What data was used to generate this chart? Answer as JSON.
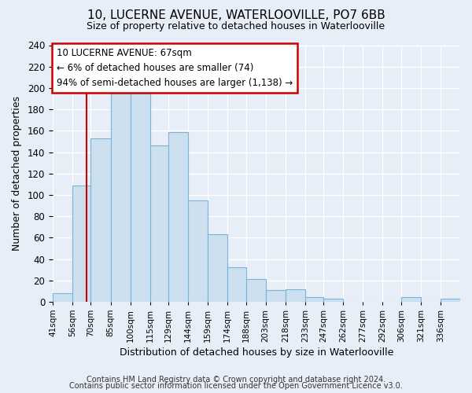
{
  "title": "10, LUCERNE AVENUE, WATERLOOVILLE, PO7 6BB",
  "subtitle": "Size of property relative to detached houses in Waterlooville",
  "xlabel": "Distribution of detached houses by size in Waterlooville",
  "ylabel": "Number of detached properties",
  "footer_line1": "Contains HM Land Registry data © Crown copyright and database right 2024.",
  "footer_line2": "Contains public sector information licensed under the Open Government Licence v3.0.",
  "bar_labels": [
    "41sqm",
    "56sqm",
    "70sqm",
    "85sqm",
    "100sqm",
    "115sqm",
    "129sqm",
    "144sqm",
    "159sqm",
    "174sqm",
    "188sqm",
    "203sqm",
    "218sqm",
    "233sqm",
    "247sqm",
    "262sqm",
    "277sqm",
    "292sqm",
    "306sqm",
    "321sqm",
    "336sqm"
  ],
  "bar_heights": [
    8,
    109,
    153,
    195,
    195,
    146,
    159,
    95,
    63,
    32,
    21,
    11,
    12,
    4,
    3,
    0,
    0,
    0,
    4,
    0,
    3
  ],
  "bar_color": "#cce0f0",
  "bar_edge_color": "#7ab5d8",
  "annotation_title": "10 LUCERNE AVENUE: 67sqm",
  "annotation_line2": "← 6% of detached houses are smaller (74)",
  "annotation_line3": "94% of semi-detached houses are larger (1,138) →",
  "vline_color": "#cc0000",
  "annotation_box_color": "#ffffff",
  "annotation_box_edge": "#cc0000",
  "ylim": [
    0,
    240
  ],
  "background_color": "#e8eef8",
  "grid_color": "#ffffff",
  "title_fontsize": 11,
  "subtitle_fontsize": 9
}
